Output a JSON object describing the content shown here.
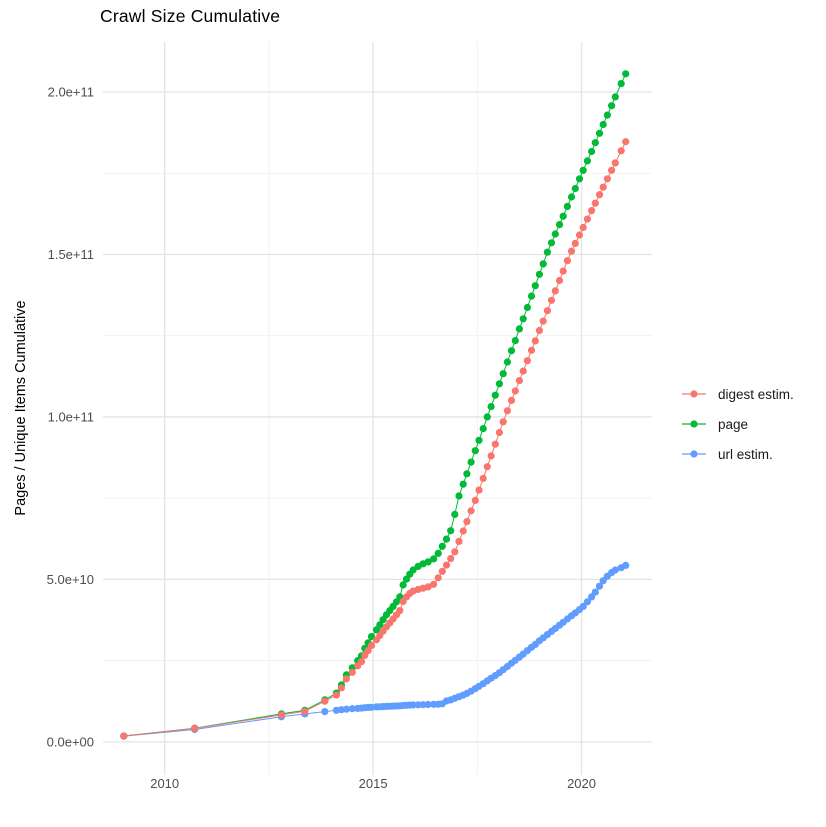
{
  "title": "Crawl Size Cumulative",
  "axes": {
    "y_title": "Pages / Unique Items Cumulative",
    "x_tick_labels": [
      "2010",
      "2015",
      "2020"
    ],
    "y_tick_labels": [
      "0.0e+00",
      "5.0e+10",
      "1.0e+11",
      "1.5e+11",
      "2.0e+11"
    ]
  },
  "colors": {
    "digest": "#F8766D",
    "page": "#00BA38",
    "url": "#619CFF",
    "grid_major": "#E4E4E4",
    "grid_minor": "#F0F0F0",
    "tick_text": "#4D4D4D"
  },
  "chart_data": {
    "type": "line",
    "title": "Crawl Size Cumulative",
    "xlabel": "",
    "ylabel": "Pages / Unique Items Cumulative",
    "legend_position": "right",
    "grid": true,
    "marker": "point",
    "x_unit": "year (decimal)",
    "value_scale_note": "y values stored in billions (multiply by 1e9)",
    "xlim": [
      2008.52,
      2021.69
    ],
    "ylim_billions": [
      -10.2,
      215.4
    ],
    "x_major_ticks": [
      2010,
      2015,
      2020
    ],
    "x_tick_labels": [
      "2010",
      "2015",
      "2020"
    ],
    "x_minor_ticks": [
      2012.5,
      2017.5
    ],
    "y_major_ticks_billions": [
      0,
      50,
      100,
      150,
      200
    ],
    "y_tick_labels": [
      "0.0e+00",
      "5.0e+10",
      "1.0e+11",
      "1.5e+11",
      "2.0e+11"
    ],
    "y_minor_ticks_billions": [
      25,
      75,
      125,
      175
    ],
    "series": [
      {
        "name": "digest estim.",
        "color": "#F8766D",
        "points": [
          [
            2009.02,
            1.8
          ],
          [
            2010.72,
            4.1
          ],
          [
            2012.8,
            8.3
          ],
          [
            2013.36,
            9.4
          ],
          [
            2013.84,
            12.5
          ],
          [
            2014.12,
            14.4
          ],
          [
            2014.24,
            16.6
          ],
          [
            2014.36,
            19.4
          ],
          [
            2014.5,
            21.4
          ],
          [
            2014.63,
            23.4
          ],
          [
            2014.72,
            24.7
          ],
          [
            2014.8,
            26.6
          ],
          [
            2014.88,
            28.1
          ],
          [
            2014.96,
            29.7
          ],
          [
            2015.08,
            31.4
          ],
          [
            2015.16,
            32.7
          ],
          [
            2015.24,
            34.1
          ],
          [
            2015.32,
            35.4
          ],
          [
            2015.4,
            36.6
          ],
          [
            2015.48,
            37.8
          ],
          [
            2015.56,
            39.1
          ],
          [
            2015.64,
            40.4
          ],
          [
            2015.72,
            43.2
          ],
          [
            2015.8,
            44.6
          ],
          [
            2015.88,
            45.7
          ],
          [
            2015.96,
            46.4
          ],
          [
            2016.08,
            46.9
          ],
          [
            2016.2,
            47.3
          ],
          [
            2016.32,
            47.7
          ],
          [
            2016.45,
            48.5
          ],
          [
            2016.56,
            50.5
          ],
          [
            2016.66,
            52.5
          ],
          [
            2016.76,
            54.4
          ],
          [
            2016.86,
            56.4
          ],
          [
            2016.96,
            58.5
          ],
          [
            2017.06,
            61.7
          ],
          [
            2017.16,
            64.9
          ],
          [
            2017.25,
            67.8
          ],
          [
            2017.35,
            71.1
          ],
          [
            2017.45,
            74.3
          ],
          [
            2017.54,
            77.5
          ],
          [
            2017.64,
            81.1
          ],
          [
            2017.74,
            84.7
          ],
          [
            2017.83,
            88.0
          ],
          [
            2017.93,
            91.6
          ],
          [
            2018.03,
            95.2
          ],
          [
            2018.12,
            98.5
          ],
          [
            2018.22,
            101.9
          ],
          [
            2018.32,
            105.1
          ],
          [
            2018.41,
            108.0
          ],
          [
            2018.51,
            111.2
          ],
          [
            2018.6,
            114.1
          ],
          [
            2018.7,
            117.3
          ],
          [
            2018.8,
            120.5
          ],
          [
            2018.89,
            123.4
          ],
          [
            2018.99,
            126.6
          ],
          [
            2019.08,
            129.5
          ],
          [
            2019.18,
            132.7
          ],
          [
            2019.28,
            135.9
          ],
          [
            2019.37,
            138.8
          ],
          [
            2019.47,
            142.0
          ],
          [
            2019.56,
            144.9
          ],
          [
            2019.66,
            148.1
          ],
          [
            2019.76,
            151.0
          ],
          [
            2019.85,
            153.4
          ],
          [
            2019.95,
            156.0
          ],
          [
            2020.04,
            158.3
          ],
          [
            2020.14,
            160.9
          ],
          [
            2020.24,
            163.5
          ],
          [
            2020.33,
            165.8
          ],
          [
            2020.43,
            168.4
          ],
          [
            2020.52,
            170.7
          ],
          [
            2020.62,
            173.3
          ],
          [
            2020.72,
            175.9
          ],
          [
            2020.81,
            178.2
          ],
          [
            2020.95,
            181.9
          ],
          [
            2021.06,
            184.7
          ]
        ]
      },
      {
        "name": "page",
        "color": "#00BA38",
        "points": [
          [
            2009.02,
            1.8
          ],
          [
            2010.72,
            4.2
          ],
          [
            2012.8,
            8.6
          ],
          [
            2013.36,
            9.7
          ],
          [
            2013.84,
            12.9
          ],
          [
            2014.12,
            15.0
          ],
          [
            2014.24,
            17.5
          ],
          [
            2014.36,
            20.6
          ],
          [
            2014.5,
            22.8
          ],
          [
            2014.63,
            25.0
          ],
          [
            2014.72,
            26.5
          ],
          [
            2014.8,
            28.8
          ],
          [
            2014.88,
            30.5
          ],
          [
            2014.96,
            32.4
          ],
          [
            2015.08,
            34.5
          ],
          [
            2015.16,
            36.0
          ],
          [
            2015.24,
            37.6
          ],
          [
            2015.32,
            39.1
          ],
          [
            2015.4,
            40.4
          ],
          [
            2015.48,
            41.7
          ],
          [
            2015.56,
            43.1
          ],
          [
            2015.64,
            44.6
          ],
          [
            2015.72,
            48.3
          ],
          [
            2015.8,
            50.1
          ],
          [
            2015.88,
            51.6
          ],
          [
            2015.96,
            52.9
          ],
          [
            2016.08,
            54.0
          ],
          [
            2016.2,
            54.8
          ],
          [
            2016.32,
            55.4
          ],
          [
            2016.45,
            56.3
          ],
          [
            2016.56,
            58.0
          ],
          [
            2016.66,
            60.2
          ],
          [
            2016.76,
            62.4
          ],
          [
            2016.86,
            65.0
          ],
          [
            2016.96,
            70.0
          ],
          [
            2017.06,
            75.7
          ],
          [
            2017.16,
            79.3
          ],
          [
            2017.25,
            82.5
          ],
          [
            2017.35,
            86.1
          ],
          [
            2017.45,
            89.6
          ],
          [
            2017.54,
            92.8
          ],
          [
            2017.64,
            96.4
          ],
          [
            2017.74,
            100.0
          ],
          [
            2017.83,
            103.2
          ],
          [
            2017.93,
            106.7
          ],
          [
            2018.03,
            110.2
          ],
          [
            2018.12,
            113.3
          ],
          [
            2018.22,
            116.9
          ],
          [
            2018.32,
            120.4
          ],
          [
            2018.41,
            123.5
          ],
          [
            2018.51,
            127.1
          ],
          [
            2018.6,
            130.2
          ],
          [
            2018.7,
            133.7
          ],
          [
            2018.8,
            137.2
          ],
          [
            2018.89,
            140.4
          ],
          [
            2018.99,
            143.9
          ],
          [
            2019.08,
            147.1
          ],
          [
            2019.18,
            150.7
          ],
          [
            2019.28,
            153.6
          ],
          [
            2019.37,
            156.3
          ],
          [
            2019.47,
            159.2
          ],
          [
            2019.56,
            161.8
          ],
          [
            2019.66,
            164.8
          ],
          [
            2019.76,
            167.7
          ],
          [
            2019.85,
            170.3
          ],
          [
            2019.95,
            173.3
          ],
          [
            2020.04,
            175.9
          ],
          [
            2020.14,
            178.8
          ],
          [
            2020.24,
            181.7
          ],
          [
            2020.33,
            184.4
          ],
          [
            2020.43,
            187.3
          ],
          [
            2020.52,
            190.0
          ],
          [
            2020.62,
            192.9
          ],
          [
            2020.72,
            195.8
          ],
          [
            2020.81,
            198.5
          ],
          [
            2020.95,
            202.6
          ],
          [
            2021.06,
            205.6
          ]
        ]
      },
      {
        "name": "url estim.",
        "color": "#619CFF",
        "points": [
          [
            2009.02,
            1.75
          ],
          [
            2010.72,
            3.8
          ],
          [
            2012.8,
            7.7
          ],
          [
            2013.36,
            8.6
          ],
          [
            2013.84,
            9.3
          ],
          [
            2014.12,
            9.7
          ],
          [
            2014.24,
            9.9
          ],
          [
            2014.36,
            10.05
          ],
          [
            2014.5,
            10.2
          ],
          [
            2014.63,
            10.3
          ],
          [
            2014.72,
            10.4
          ],
          [
            2014.8,
            10.5
          ],
          [
            2014.88,
            10.6
          ],
          [
            2014.96,
            10.65
          ],
          [
            2015.08,
            10.75
          ],
          [
            2015.16,
            10.8
          ],
          [
            2015.24,
            10.85
          ],
          [
            2015.32,
            10.9
          ],
          [
            2015.4,
            10.95
          ],
          [
            2015.48,
            11.0
          ],
          [
            2015.56,
            11.05
          ],
          [
            2015.64,
            11.1
          ],
          [
            2015.72,
            11.2
          ],
          [
            2015.8,
            11.25
          ],
          [
            2015.88,
            11.3
          ],
          [
            2015.96,
            11.35
          ],
          [
            2016.08,
            11.4
          ],
          [
            2016.2,
            11.45
          ],
          [
            2016.32,
            11.5
          ],
          [
            2016.45,
            11.55
          ],
          [
            2016.56,
            11.6
          ],
          [
            2016.66,
            11.7
          ],
          [
            2016.76,
            12.6
          ],
          [
            2016.86,
            12.9
          ],
          [
            2016.96,
            13.4
          ],
          [
            2017.06,
            13.9
          ],
          [
            2017.16,
            14.4
          ],
          [
            2017.25,
            14.9
          ],
          [
            2017.35,
            15.6
          ],
          [
            2017.45,
            16.4
          ],
          [
            2017.54,
            17.1
          ],
          [
            2017.64,
            17.9
          ],
          [
            2017.74,
            18.8
          ],
          [
            2017.83,
            19.6
          ],
          [
            2017.93,
            20.4
          ],
          [
            2018.03,
            21.3
          ],
          [
            2018.12,
            22.2
          ],
          [
            2018.22,
            23.2
          ],
          [
            2018.32,
            24.2
          ],
          [
            2018.41,
            25.1
          ],
          [
            2018.51,
            26.1
          ],
          [
            2018.6,
            27.0
          ],
          [
            2018.7,
            28.1
          ],
          [
            2018.8,
            29.1
          ],
          [
            2018.89,
            30.0
          ],
          [
            2018.99,
            31.1
          ],
          [
            2019.08,
            32.0
          ],
          [
            2019.18,
            33.0
          ],
          [
            2019.28,
            34.0
          ],
          [
            2019.37,
            34.9
          ],
          [
            2019.47,
            35.9
          ],
          [
            2019.56,
            36.8
          ],
          [
            2019.66,
            37.8
          ],
          [
            2019.76,
            38.8
          ],
          [
            2019.85,
            39.7
          ],
          [
            2019.95,
            40.7
          ],
          [
            2020.04,
            41.7
          ],
          [
            2020.14,
            43.1
          ],
          [
            2020.24,
            44.6
          ],
          [
            2020.33,
            46.1
          ],
          [
            2020.43,
            47.9
          ],
          [
            2020.52,
            49.6
          ],
          [
            2020.62,
            51.0
          ],
          [
            2020.72,
            52.1
          ],
          [
            2020.81,
            52.9
          ],
          [
            2020.95,
            53.6
          ],
          [
            2021.06,
            54.3
          ]
        ]
      }
    ]
  }
}
